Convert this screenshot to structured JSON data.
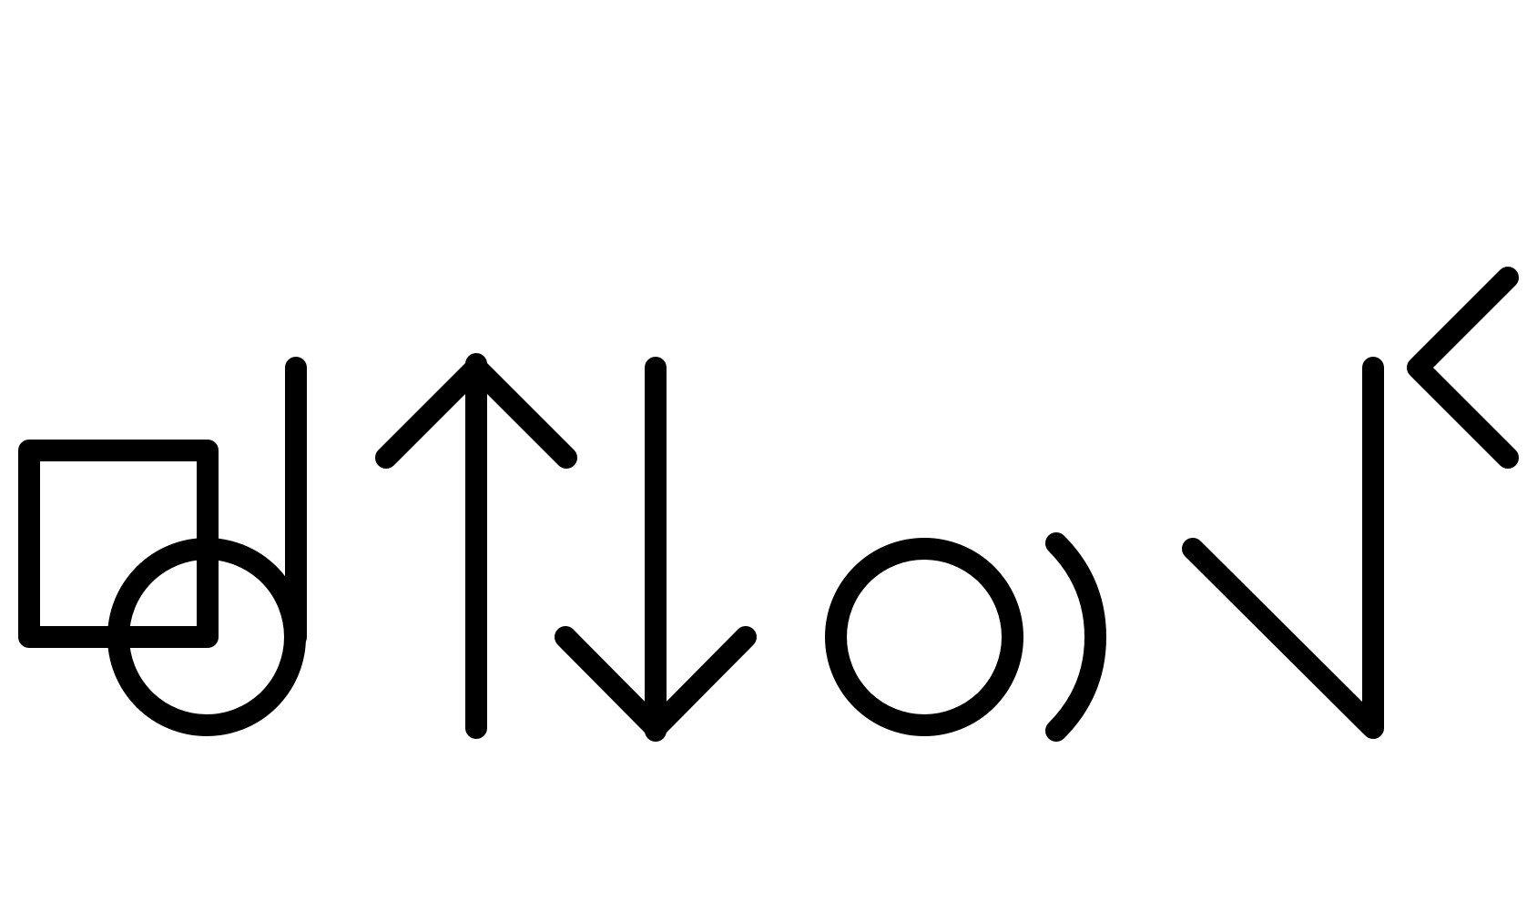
{
  "canvas": {
    "background": "#ffffff",
    "stroke_color": "#000000"
  },
  "glyphs": [
    {
      "icon": "square-circle-stem-icon"
    },
    {
      "icon": "up-arrow-icon"
    },
    {
      "icon": "down-arrow-icon"
    },
    {
      "icon": "circle-icon"
    },
    {
      "icon": "right-parenthesis-arc-icon"
    },
    {
      "icon": "check-stroke-icon"
    },
    {
      "icon": "left-chevron-icon"
    }
  ]
}
